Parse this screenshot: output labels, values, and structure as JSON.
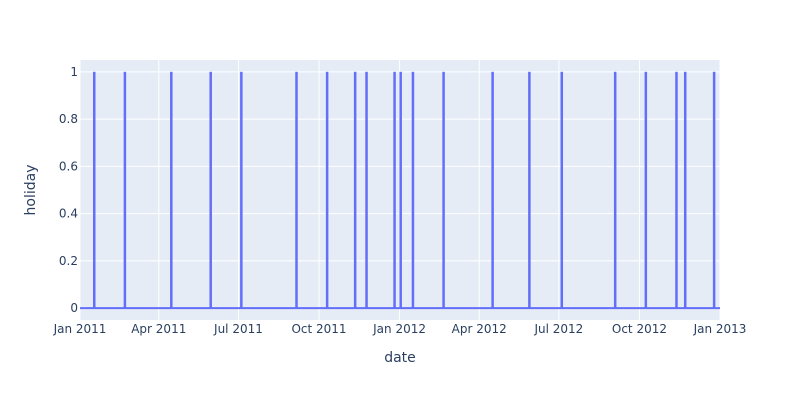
{
  "chart_data": {
    "type": "line",
    "xlabel": "date",
    "ylabel": "holiday",
    "xlim": [
      "2011-01-01",
      "2013-01-01"
    ],
    "ylim": [
      -0.05,
      1.05
    ],
    "grid": true,
    "x_tick_labels": [
      "Jan 2011",
      "Apr 2011",
      "Jul 2011",
      "Oct 2011",
      "Jan 2012",
      "Apr 2012",
      "Jul 2012",
      "Oct 2012",
      "Jan 2013"
    ],
    "x_tick_dates": [
      "2011-01-01",
      "2011-04-01",
      "2011-07-01",
      "2011-10-01",
      "2012-01-01",
      "2012-04-01",
      "2012-07-01",
      "2012-10-01",
      "2013-01-01"
    ],
    "y_tick_labels": [
      "0",
      "0.2",
      "0.4",
      "0.6",
      "0.8",
      "1"
    ],
    "y_tick_values": [
      0,
      0.2,
      0.4,
      0.6,
      0.8,
      1
    ],
    "series": [
      {
        "baseline": 0,
        "holiday_dates": [
          "2011-01-17",
          "2011-02-21",
          "2011-04-15",
          "2011-05-30",
          "2011-07-04",
          "2011-09-05",
          "2011-10-10",
          "2011-11-11",
          "2011-11-24",
          "2011-12-26",
          "2012-01-02",
          "2012-01-16",
          "2012-02-20",
          "2012-04-16",
          "2012-05-28",
          "2012-07-04",
          "2012-09-03",
          "2012-10-08",
          "2012-11-12",
          "2012-11-22",
          "2012-12-25"
        ],
        "holiday_value": 1
      }
    ],
    "colors": {
      "series": "#636efa",
      "plot_bg": "#e5ecf6",
      "grid": "#ffffff",
      "text": "#2a3f5f"
    }
  }
}
